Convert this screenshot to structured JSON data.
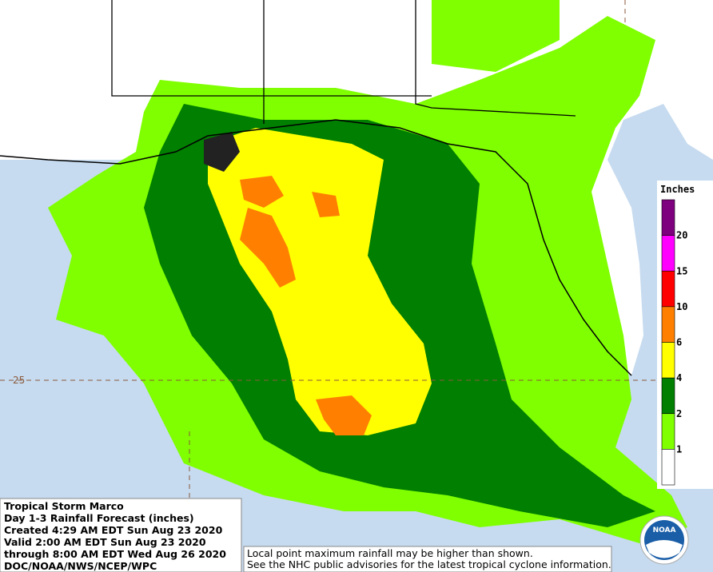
{
  "info": [
    "Tropical Storm Marco",
    "Day 1-3 Rainfall Forecast (inches)",
    "Created 4:29 AM EDT Sun Aug 23 2020",
    "Valid 2:00 AM EDT Sun Aug 23 2020",
    "through 8:00 AM EDT Wed Aug 26 2020",
    "DOC/NOAA/NWS/NCEP/WPC"
  ],
  "footnote": [
    "Local point maximum rainfall may be higher than shown.",
    "See the NHC public advisories for the latest tropical cyclone information."
  ],
  "legend": {
    "title": "Inches",
    "labels": [
      "20",
      "15",
      "10",
      "6",
      "4",
      "2",
      "1"
    ],
    "colors": [
      "#7f007f",
      "#ff00ff",
      "#ff0000",
      "#ff8000",
      "#ffff00",
      "#007f00",
      "#7fff00",
      "#ffffff"
    ]
  },
  "map_labels": {
    "latitude": "25"
  },
  "logo": "NOAA"
}
